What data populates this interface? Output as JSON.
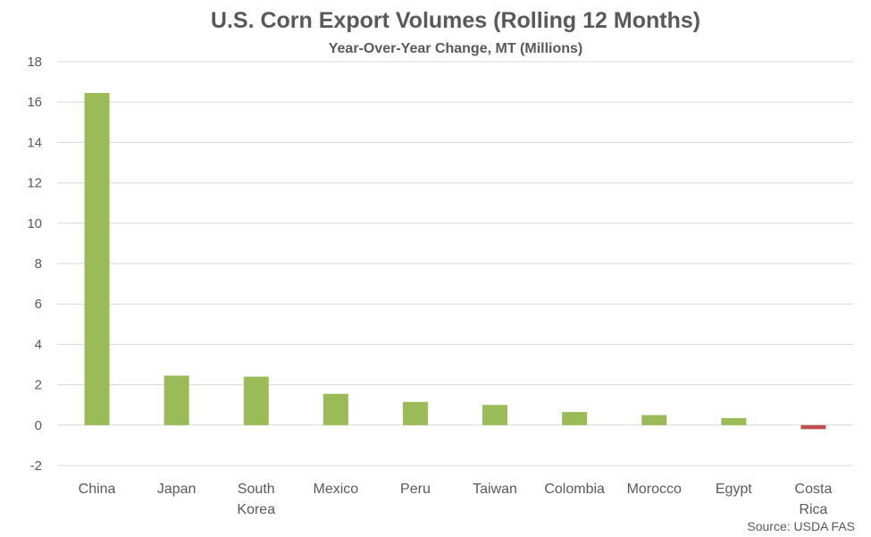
{
  "chart_data": {
    "type": "bar",
    "title": "U.S. Corn Export Volumes (Rolling 12 Months)",
    "subtitle": "Year-Over-Year Change, MT (Millions)",
    "xlabel": "",
    "ylabel": "",
    "ylim": [
      -2,
      18
    ],
    "yticks": [
      -2,
      0,
      2,
      4,
      6,
      8,
      10,
      12,
      14,
      16,
      18
    ],
    "categories": [
      "China",
      "Japan",
      "South Korea",
      "Mexico",
      "Peru",
      "Taiwan",
      "Colombia",
      "Morocco",
      "Egypt",
      "Costa Rica"
    ],
    "values": [
      16.45,
      2.45,
      2.4,
      1.55,
      1.15,
      1.0,
      0.65,
      0.5,
      0.35,
      -0.2
    ],
    "grid": true,
    "legend": "none",
    "colors": {
      "positive": "#9bbb59",
      "negative": "#c0504d"
    },
    "source": "Source: USDA FAS"
  }
}
